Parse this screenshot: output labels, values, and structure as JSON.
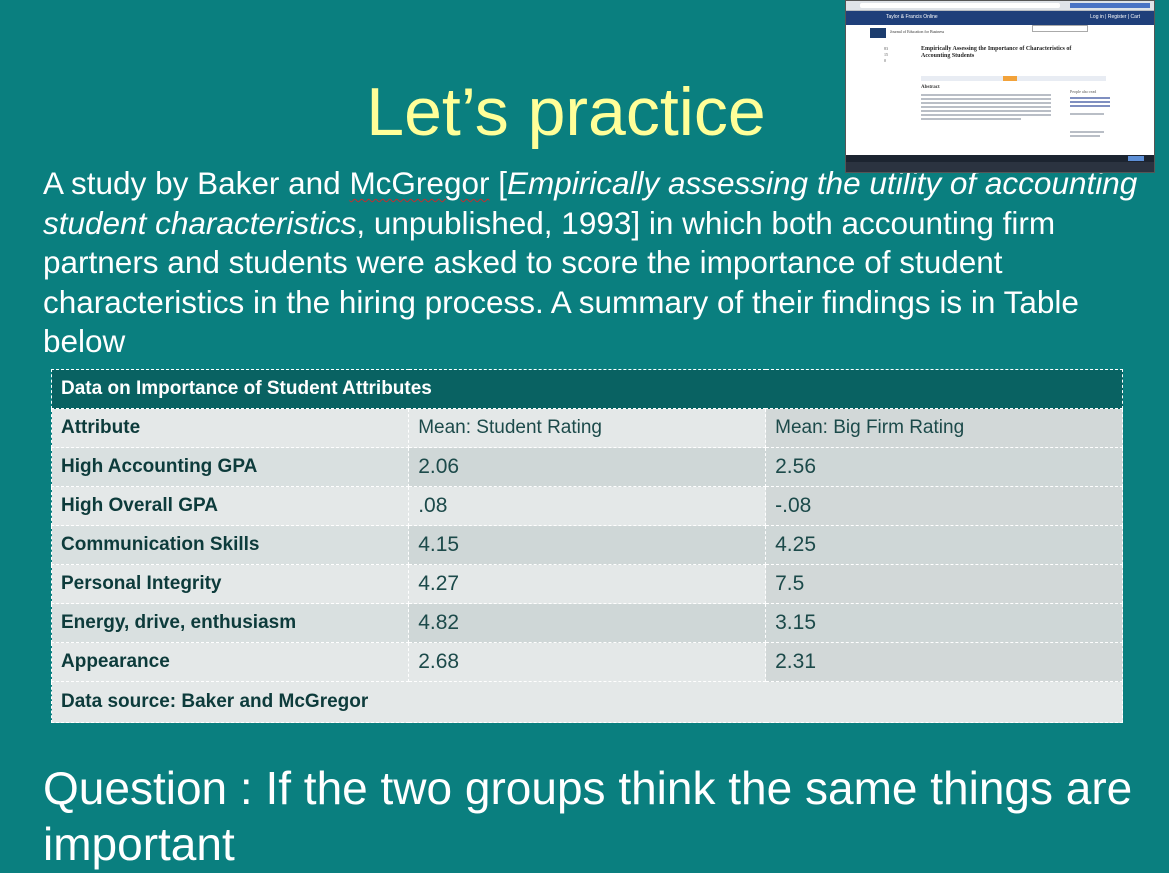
{
  "slide": {
    "title": "Let’s practice",
    "intro": {
      "p1": "A study by Baker and ",
      "p2": "McGregor",
      "p3": " [",
      "italic": "Empirically assessing the utility of accounting student characteristics",
      "p4": ", unpublished, 1993] in which both accounting firm partners and students were asked to score the importance of student characteristics in the hiring process. A summary of their findings is in Table below"
    },
    "question": "Question : If the two groups think the same things are important"
  },
  "table": {
    "caption": "Data on Importance of Student Attributes",
    "headers": [
      "Attribute",
      "Mean: Student Rating",
      "Mean: Big Firm Rating"
    ],
    "rows": [
      [
        "High Accounting GPA",
        "2.06",
        "2.56"
      ],
      [
        "High Overall GPA",
        ".08",
        "-.08"
      ],
      [
        "Communication Skills",
        "4.15",
        "4.25"
      ],
      [
        "Personal Integrity",
        "4.27",
        "7.5"
      ],
      [
        "Energy, drive, enthusiasm",
        "4.82",
        "3.15"
      ],
      [
        "Appearance",
        "2.68",
        "2.31"
      ]
    ],
    "source": "Data source: Baker and McGregor"
  },
  "thumbnail": {
    "site_brand": "Taylor & Francis Online",
    "site_links": "Log in  |  Register  |  Cart",
    "journal_name": "Journal of Education for Business",
    "article_title": "Empirically Assessing the Importance of Characteristics of Accounting Students",
    "meta": "83\n15\n0",
    "abstract_heading": "Abstract",
    "side_heading": "People also read"
  }
}
